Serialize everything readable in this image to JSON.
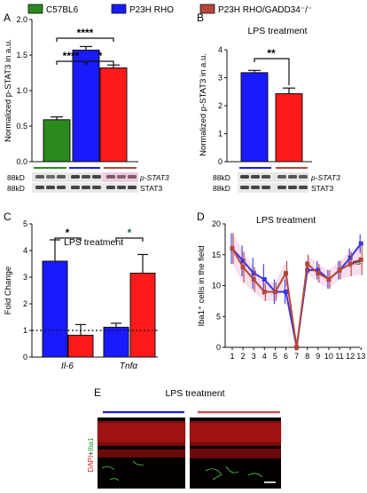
{
  "legend": [
    {
      "label": "C57BL6",
      "color": "#2a8a1e"
    },
    {
      "label": "P23H RHO",
      "color": "#1a1aff"
    },
    {
      "label": "P23H RHO/GADD34⁻/⁻",
      "color": "#ff1a1a"
    }
  ],
  "colors": {
    "green": "#2a8a1e",
    "blue": "#1a1aff",
    "red": "#ff1a1a",
    "brown": "#b5473a",
    "lineblue": "#3a35e0"
  },
  "western": {
    "a": {
      "mw1": "88kD",
      "mw2": "88kD",
      "lab1": "p-STAT3",
      "lab2": "STAT3"
    },
    "b": {
      "mw1": "88kD",
      "mw2": "88kD",
      "lab1": "p-STAT3",
      "lab2": "STAT3"
    }
  },
  "panel_e": {
    "letter": "E",
    "title": "LPS treatment",
    "stain_dapi": "DAPI",
    "stain_iba1": "Iba1"
  },
  "chart_data": [
    {
      "panel": "A",
      "type": "bar",
      "ylabel": "Normalized p-STAT3 in a.u.",
      "ylim": [
        0,
        2
      ],
      "yticks": [
        "0.0",
        "0.5",
        "1.0",
        "1.5",
        "2.0"
      ],
      "categories": [
        "C57BL6",
        "P23H RHO",
        "P23H RHO/GADD34⁻/⁻"
      ],
      "values": [
        0.59,
        1.57,
        1.32
      ],
      "errors": [
        0.04,
        0.05,
        0.04
      ],
      "significance": [
        "****",
        "****",
        "*"
      ]
    },
    {
      "panel": "B",
      "type": "bar",
      "title": "LPS treatment",
      "ylabel": "Normalized p-STAT3 in a.u.",
      "ylim": [
        0,
        4
      ],
      "yticks": [
        "0",
        "1",
        "2",
        "3",
        "4"
      ],
      "categories": [
        "P23H RHO",
        "P23H RHO/GADD34⁻/⁻"
      ],
      "values": [
        3.18,
        2.43
      ],
      "errors": [
        0.08,
        0.2
      ],
      "significance": [
        "**"
      ]
    },
    {
      "panel": "C",
      "type": "bar",
      "title": "LPS treatment",
      "ylabel": "Fold Change",
      "ylim": [
        0,
        5
      ],
      "yticks": [
        "0",
        "1",
        "2",
        "3",
        "4",
        "5"
      ],
      "categories": [
        "Il-6",
        "Tnfα"
      ],
      "series": [
        {
          "values": [
            3.6,
            1.12
          ],
          "errors": [
            0.8,
            0.15
          ]
        },
        {
          "values": [
            0.82,
            3.15
          ],
          "errors": [
            0.4,
            0.7
          ]
        }
      ],
      "significance": [
        "*",
        "*"
      ]
    },
    {
      "panel": "D",
      "type": "line",
      "title": "LPS treatment",
      "ylabel": "Iba1⁺ cells in the field",
      "ylim": [
        0,
        20
      ],
      "yticks": [
        "0",
        "5",
        "10",
        "15",
        "20"
      ],
      "x": [
        "1",
        "2",
        "3",
        "4",
        "5",
        "6",
        "7",
        "8",
        "9",
        "10",
        "11",
        "12",
        "13"
      ],
      "series": [
        {
          "values": [
            16,
            14,
            12,
            11,
            9,
            9,
            0,
            12.5,
            12.5,
            11,
            12.5,
            14.5,
            16.8
          ],
          "errors": [
            2.5,
            2.5,
            2.5,
            2.5,
            2.0,
            2.0,
            0.5,
            1.5,
            1.5,
            1.5,
            1.5,
            1.5,
            1.5
          ]
        },
        {
          "values": [
            16,
            13,
            11,
            9,
            9,
            12,
            0,
            13.5,
            12,
            11,
            12.5,
            13.5,
            14.2
          ],
          "errors": [
            2.5,
            2.5,
            2.0,
            1.5,
            1.5,
            2.0,
            0.5,
            1.5,
            1.5,
            1.5,
            1.5,
            2.0,
            2.5
          ]
        }
      ],
      "annotation": "ns"
    }
  ],
  "panel_letters": {
    "a": "A",
    "b": "B",
    "c": "C",
    "d": "D"
  }
}
